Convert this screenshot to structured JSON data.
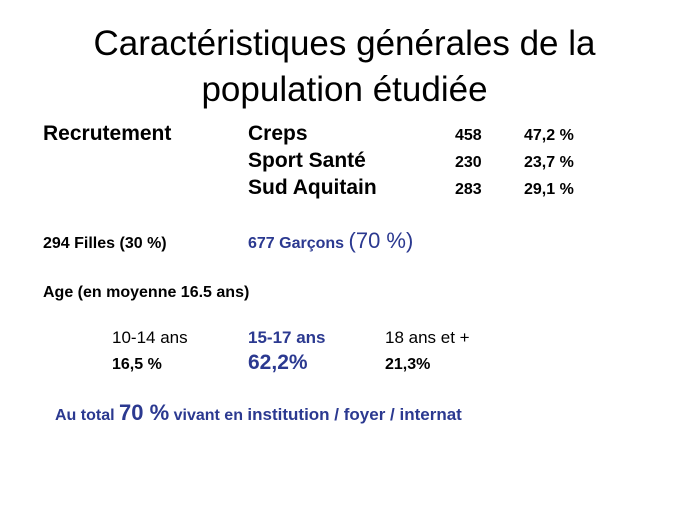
{
  "slide": {
    "title_line1": "Caractéristiques générales de la",
    "title_line2": "population étudiée",
    "recrutement": {
      "label": "Recrutement",
      "rows": [
        {
          "name": "Creps",
          "count": "458",
          "pct": "47,2 %"
        },
        {
          "name": "Sport Santé",
          "count": "230",
          "pct": "23,7 %"
        },
        {
          "name": "Sud Aquitain",
          "count": "283",
          "pct": "29,1 %"
        }
      ]
    },
    "sexe": {
      "filles": "294 Filles (30 %)",
      "garcons_label": "677 Garçons",
      "garcons_pct": "(70 %)"
    },
    "age": {
      "label": "Age  (en moyenne 16.5 ans)",
      "groups": [
        {
          "range": "10-14 ans",
          "pct": "16,5 %"
        },
        {
          "range": "15-17 ans",
          "pct": "62,2%"
        },
        {
          "range": "18 ans et +",
          "pct": "21,3%"
        }
      ]
    },
    "total": {
      "prefix": "Au total",
      "pct": "70 %",
      "middle": "vivant en",
      "places": "institution / foyer / internat"
    },
    "colors": {
      "accent_blue": "#2b3990",
      "text": "#000000"
    }
  }
}
